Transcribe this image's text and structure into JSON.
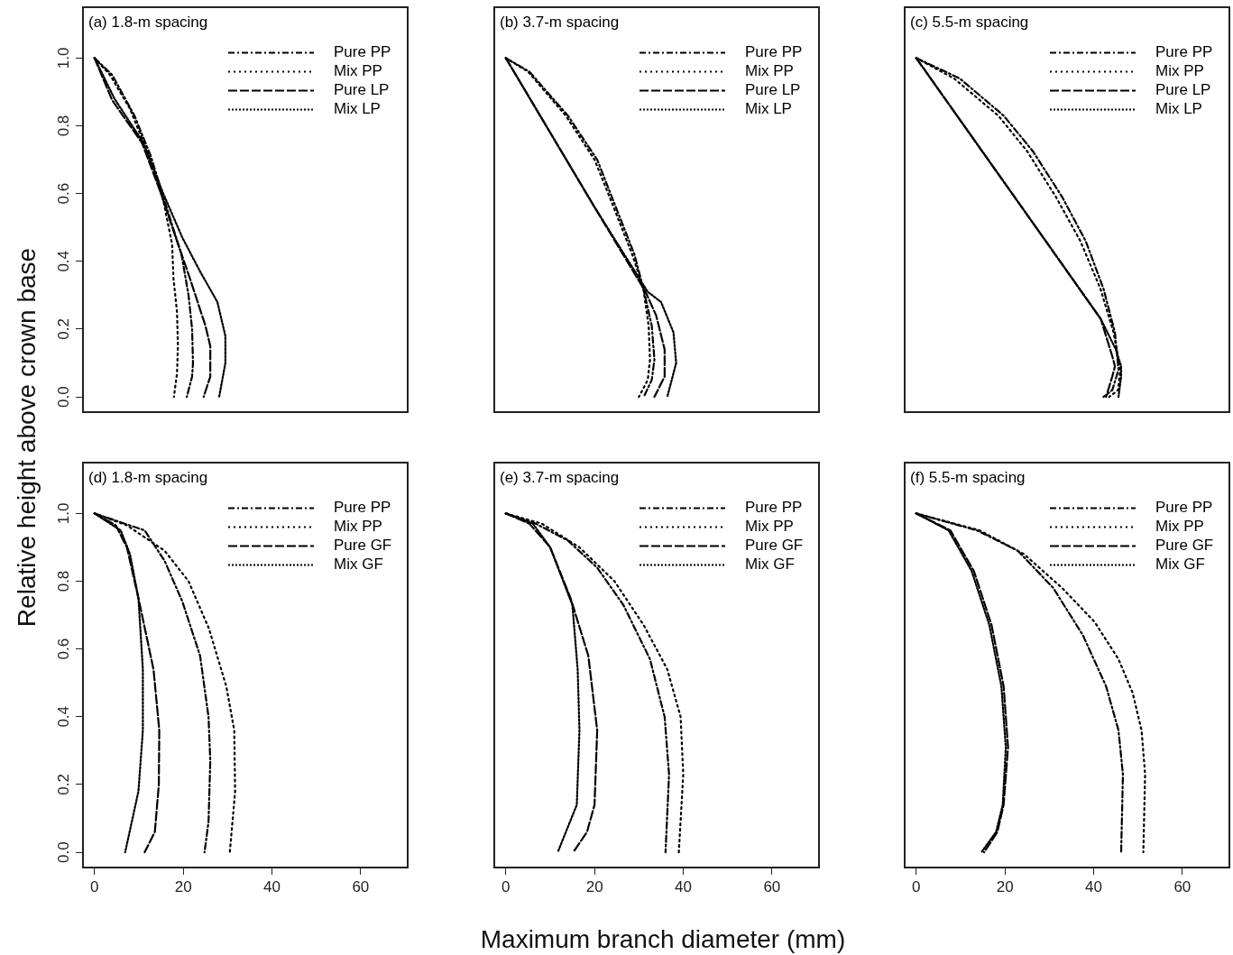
{
  "chart_data": [
    {
      "type": "line",
      "title": "(a) 1.8-m spacing",
      "ylabel": "Relative height above crown base",
      "xlim": [
        -2.6,
        70.6
      ],
      "ylim": [
        -0.045,
        1.15
      ],
      "yticks": [
        {
          "value": 0,
          "label": "0.0"
        },
        {
          "value": 0.2,
          "label": "0.2"
        },
        {
          "value": 0.4,
          "label": "0.4"
        },
        {
          "value": 0.6,
          "label": "0.6"
        },
        {
          "value": 0.8,
          "label": "0.8"
        },
        {
          "value": 1,
          "label": "1.0"
        }
      ],
      "tick_labels": "y",
      "legend": "top right",
      "series": [
        {
          "name": "Pure PP",
          "color": "#000000",
          "line_style": "dashed",
          "x": [
            0,
            4,
            9,
            12.7,
            16,
            19.6,
            21.2,
            22,
            22.2,
            22,
            20.8
          ],
          "values": [
            1,
            0.95,
            0.83,
            0.71,
            0.57,
            0.42,
            0.3,
            0.2,
            0.1,
            0.06,
            0
          ]
        },
        {
          "name": "Mix PP",
          "color": "#000000",
          "line_style": "dotted",
          "x": [
            0,
            3.5,
            8,
            12,
            15.5,
            17.5,
            17.8,
            18.6,
            18.8,
            18.6,
            17.9
          ],
          "values": [
            1,
            0.95,
            0.85,
            0.72,
            0.58,
            0.45,
            0.35,
            0.25,
            0.15,
            0.07,
            0
          ]
        },
        {
          "name": "Pure LP",
          "color": "#000000",
          "line_style": "dashed",
          "x": [
            0,
            4,
            10.7,
            15,
            17.8,
            21.5,
            25,
            26.1,
            26.1,
            24.6
          ],
          "values": [
            1,
            0.875,
            0.75,
            0.6,
            0.49,
            0.35,
            0.21,
            0.15,
            0.06,
            0
          ]
        },
        {
          "name": "Mix LP",
          "color": "#000000",
          "line_style": "dotted",
          "x": [
            0,
            4.5,
            11,
            15.5,
            19.8,
            23.8,
            27.7,
            29.5,
            29.5,
            28.1
          ],
          "values": [
            1,
            0.88,
            0.75,
            0.6,
            0.47,
            0.37,
            0.28,
            0.18,
            0.1,
            0
          ]
        }
      ]
    },
    {
      "type": "line",
      "title": "(b) 3.7-m spacing",
      "xlim": [
        -2.6,
        70.6
      ],
      "ylim": [
        -0.045,
        1.15
      ],
      "tick_labels": false,
      "legend": "top right",
      "series": [
        {
          "name": "Pure PP",
          "color": "#000000",
          "line_style": "dashed",
          "x": [
            0,
            5.3,
            14,
            20.6,
            24.5,
            29,
            31,
            32.9,
            33.5,
            32.9,
            31.1
          ],
          "values": [
            1,
            0.96,
            0.83,
            0.7,
            0.57,
            0.42,
            0.32,
            0.21,
            0.11,
            0.05,
            0
          ]
        },
        {
          "name": "Mix PP",
          "color": "#000000",
          "line_style": "dotted",
          "x": [
            0,
            5,
            13.5,
            20,
            24,
            28.5,
            31,
            32.2,
            32.5,
            32,
            30
          ],
          "values": [
            1,
            0.96,
            0.83,
            0.7,
            0.57,
            0.42,
            0.32,
            0.21,
            0.11,
            0.05,
            0
          ]
        },
        {
          "name": "Pure LP",
          "color": "#000000",
          "line_style": "dashed",
          "x": [
            0,
            10,
            20,
            31.5,
            33.9,
            35.8,
            35.8,
            33.5
          ],
          "values": [
            1,
            0.78,
            0.56,
            0.31,
            0.24,
            0.14,
            0.06,
            0
          ]
        },
        {
          "name": "Mix LP",
          "color": "#000000",
          "line_style": "dotted",
          "x": [
            0,
            10,
            20,
            32,
            35,
            37.8,
            38.4,
            36.4
          ],
          "values": [
            1,
            0.78,
            0.56,
            0.31,
            0.28,
            0.19,
            0.1,
            0
          ]
        }
      ]
    },
    {
      "type": "line",
      "title": "(c) 5.5-m spacing",
      "xlim": [
        -2.6,
        70.6
      ],
      "ylim": [
        -0.045,
        1.15
      ],
      "tick_labels": false,
      "legend": "top right",
      "series": [
        {
          "name": "Pure PP",
          "color": "#000000",
          "line_style": "dashed",
          "x": [
            0,
            9.8,
            19.7,
            26.3,
            32.9,
            38.2,
            42.2,
            44.8,
            45.6,
            44.2,
            42.2
          ],
          "values": [
            1,
            0.94,
            0.83,
            0.725,
            0.59,
            0.46,
            0.32,
            0.19,
            0.08,
            0.02,
            0
          ]
        },
        {
          "name": "Mix PP",
          "color": "#000000",
          "line_style": "dotted",
          "x": [
            0,
            8.5,
            18.5,
            25,
            31.5,
            37,
            41.5,
            44.5,
            46,
            45.5,
            43.5
          ],
          "values": [
            1,
            0.94,
            0.83,
            0.725,
            0.59,
            0.46,
            0.32,
            0.19,
            0.08,
            0.02,
            0
          ]
        },
        {
          "name": "Pure LP",
          "color": "#000000",
          "line_style": "dashed",
          "x": [
            0,
            10,
            20,
            30,
            41.6,
            44.2,
            44.8,
            44.2,
            42.8
          ],
          "values": [
            1,
            0.815,
            0.63,
            0.445,
            0.23,
            0.12,
            0.09,
            0.06,
            0
          ]
        },
        {
          "name": "Mix LP",
          "color": "#000000",
          "line_style": "dotted",
          "x": [
            0,
            10,
            20,
            30,
            41.6,
            45,
            46.2,
            46.2,
            45.6
          ],
          "values": [
            1,
            0.815,
            0.63,
            0.445,
            0.23,
            0.14,
            0.09,
            0.06,
            0
          ]
        }
      ]
    },
    {
      "type": "line",
      "title": "(d) 1.8-m spacing",
      "xlim": [
        -2.6,
        70.6
      ],
      "ylim": [
        -0.045,
        1.15
      ],
      "xticks": [
        0,
        20,
        40,
        60
      ],
      "yticks": [
        {
          "value": 0,
          "label": "0.0"
        },
        {
          "value": 0.2,
          "label": "0.2"
        },
        {
          "value": 0.4,
          "label": "0.4"
        },
        {
          "value": 0.6,
          "label": "0.6"
        },
        {
          "value": 0.8,
          "label": "0.8"
        },
        {
          "value": 1,
          "label": "1.0"
        }
      ],
      "legend": "top right",
      "series": [
        {
          "name": "Pure PP",
          "color": "#000000",
          "line_style": "dashed",
          "x": [
            0,
            11.3,
            15.8,
            19.8,
            23.8,
            25.7,
            26.1,
            25.7,
            24.8
          ],
          "values": [
            1,
            0.95,
            0.86,
            0.74,
            0.58,
            0.4,
            0.27,
            0.09,
            0
          ]
        },
        {
          "name": "Mix PP",
          "color": "#000000",
          "line_style": "dotted",
          "x": [
            0,
            7.3,
            15.8,
            21.2,
            25.8,
            29.7,
            31.5,
            31.7,
            30.5
          ],
          "values": [
            1,
            0.965,
            0.89,
            0.8,
            0.66,
            0.49,
            0.36,
            0.18,
            0
          ]
        },
        {
          "name": "Pure GF",
          "color": "#000000",
          "line_style": "dashed",
          "x": [
            0,
            4.8,
            7.3,
            9.9,
            13.3,
            14.6,
            14.5,
            13.6,
            11.3
          ],
          "values": [
            1,
            0.965,
            0.9,
            0.75,
            0.54,
            0.36,
            0.2,
            0.06,
            0
          ]
        },
        {
          "name": "Mix GF",
          "color": "#000000",
          "line_style": "dotted",
          "x": [
            0,
            5.9,
            8,
            9.9,
            10.9,
            10.9,
            9.9,
            6.9
          ],
          "values": [
            1,
            0.95,
            0.88,
            0.75,
            0.54,
            0.36,
            0.18,
            0
          ]
        }
      ]
    },
    {
      "type": "line",
      "title": "(e) 3.7-m spacing",
      "xlabel": "Maximum branch diameter (mm)",
      "xlim": [
        -2.6,
        70.6
      ],
      "ylim": [
        -0.045,
        1.15
      ],
      "xticks": [
        0,
        20,
        40,
        60
      ],
      "tick_labels": "x",
      "legend": "top right",
      "series": [
        {
          "name": "Pure PP",
          "color": "#000000",
          "line_style": "dashed",
          "x": [
            0,
            6.7,
            14,
            20.6,
            26.5,
            32.5,
            35.8,
            36.8,
            36
          ],
          "values": [
            1,
            0.97,
            0.92,
            0.84,
            0.73,
            0.57,
            0.4,
            0.23,
            0
          ]
        },
        {
          "name": "Mix PP",
          "color": "#000000",
          "line_style": "dotted",
          "x": [
            0,
            8.1,
            16.6,
            24.5,
            31.1,
            36.4,
            39.4,
            40,
            39
          ],
          "values": [
            1,
            0.97,
            0.9,
            0.8,
            0.67,
            0.54,
            0.4,
            0.23,
            0
          ]
        },
        {
          "name": "Pure GF",
          "color": "#000000",
          "line_style": "dashed",
          "x": [
            0,
            5.3,
            10,
            14.6,
            18.6,
            20.6,
            20,
            18.3,
            15.2
          ],
          "values": [
            1,
            0.97,
            0.9,
            0.75,
            0.58,
            0.36,
            0.14,
            0.06,
            0
          ]
        },
        {
          "name": "Mix GF",
          "color": "#000000",
          "line_style": "dotted",
          "x": [
            0,
            6.1,
            10,
            15,
            16.2,
            16.6,
            16,
            11.7
          ],
          "values": [
            1,
            0.97,
            0.9,
            0.73,
            0.54,
            0.36,
            0.14,
            0
          ]
        }
      ]
    },
    {
      "type": "line",
      "title": "(f) 5.5-m spacing",
      "xlim": [
        -2.6,
        70.6
      ],
      "ylim": [
        -0.045,
        1.15
      ],
      "xticks": [
        0,
        20,
        40,
        60
      ],
      "tick_labels": "x",
      "legend": "top right",
      "series": [
        {
          "name": "Pure PP",
          "color": "#000000",
          "line_style": "dashed",
          "x": [
            0,
            13.7,
            22.9,
            30.9,
            37.6,
            42.8,
            45.6,
            46.6,
            46.2
          ],
          "values": [
            1,
            0.95,
            0.89,
            0.78,
            0.64,
            0.49,
            0.36,
            0.23,
            0
          ]
        },
        {
          "name": "Mix PP",
          "color": "#000000",
          "line_style": "dotted",
          "x": [
            0,
            14.3,
            24.3,
            32.9,
            40.2,
            45.6,
            48.8,
            50.8,
            51.6,
            51.2
          ],
          "values": [
            1,
            0.95,
            0.88,
            0.78,
            0.68,
            0.57,
            0.47,
            0.36,
            0.23,
            0
          ]
        },
        {
          "name": "Pure GF",
          "color": "#000000",
          "line_style": "dashed",
          "x": [
            0,
            7.7,
            13,
            17,
            19.7,
            20.7,
            19.7,
            18.3,
            15.3
          ],
          "values": [
            1,
            0.95,
            0.83,
            0.67,
            0.49,
            0.31,
            0.14,
            0.06,
            0
          ]
        },
        {
          "name": "Mix GF",
          "color": "#000000",
          "line_style": "dotted",
          "x": [
            0,
            7.3,
            12.5,
            16.5,
            19.2,
            20.2,
            19.5,
            18,
            14.7
          ],
          "values": [
            1,
            0.95,
            0.83,
            0.67,
            0.49,
            0.31,
            0.14,
            0.06,
            0
          ]
        }
      ]
    }
  ]
}
